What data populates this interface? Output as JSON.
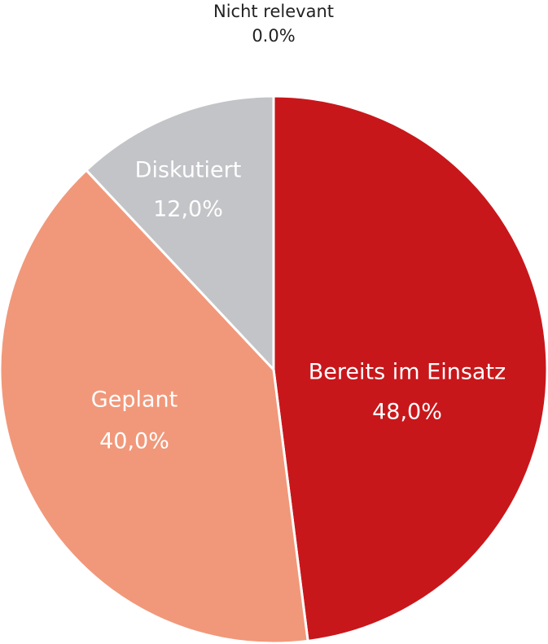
{
  "chart_data": {
    "type": "pie",
    "start_angle": "top, clockwise",
    "slices": [
      {
        "label": "Bereits im Einsatz",
        "value": 48.0,
        "display": "48,0%",
        "color": "#C8171B"
      },
      {
        "label": "Geplant",
        "value": 40.0,
        "display": "40,0%",
        "color": "#F1987A"
      },
      {
        "label": "Diskutiert",
        "value": 12.0,
        "display": "12,0%",
        "color": "#C3C4C8"
      },
      {
        "label": "Nicht relevant",
        "value": 0.0,
        "display": "0.0%",
        "color": "#888888"
      }
    ],
    "slice_border_color": "#ffffff"
  }
}
